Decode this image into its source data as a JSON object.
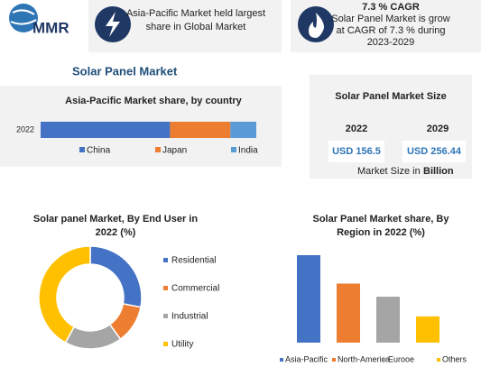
{
  "logo": "MMR",
  "highlights": [
    {
      "lines": [
        "Asia-Pacific Market held largest",
        "share in Global Market"
      ]
    },
    {
      "title": "7.3 % CAGR",
      "lines": [
        "Solar Panel Market is grow",
        "at CAGR of 7.3 % during",
        "2023-2029"
      ]
    }
  ],
  "heading": "Solar Panel Market",
  "market_size": {
    "title": "Solar Panel Market Size",
    "years": [
      "2022",
      "2029"
    ],
    "values": [
      "USD 156.5",
      "USD 256.44"
    ],
    "note": "Market Size in",
    "unit": "Billion"
  },
  "chart_data": [
    {
      "type": "stacked_bar",
      "title": [
        "Asia-Pacific Market share, by country"
      ],
      "categories": [
        "2022"
      ],
      "series": [
        {
          "name": "China",
          "color": "#4472c4",
          "values": [
            60
          ]
        },
        {
          "name": "Japan",
          "color": "#ed7d31",
          "values": [
            28
          ]
        },
        {
          "name": "India",
          "color": "#5b9bd5",
          "values": [
            12
          ]
        }
      ]
    },
    {
      "type": "donut",
      "title": [
        "Solar panel Market, By End User in",
        "2022 (%)"
      ],
      "categories": [
        "Residential",
        "Commercial",
        "Industrial",
        "Utility"
      ],
      "values": [
        28,
        12,
        18,
        42
      ],
      "colors": [
        "#4472c4",
        "#ed7d31",
        "#a5a5a5",
        "#ffc000"
      ]
    },
    {
      "type": "bar",
      "title": [
        "Solar Panel Market share, By",
        "Region in 2022 (%)"
      ],
      "categories": [
        "Asia-Pacific",
        "North-America",
        "Eurooe",
        "Others"
      ],
      "values": [
        40,
        27,
        21,
        12
      ],
      "colors": [
        "#4472c4",
        "#ed7d31",
        "#a5a5a5",
        "#ffc000"
      ]
    }
  ]
}
